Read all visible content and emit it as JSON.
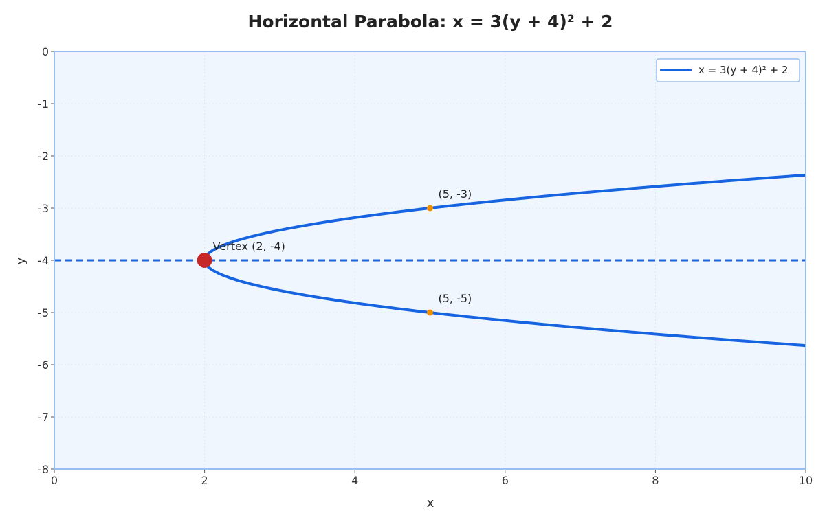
{
  "chart_data": {
    "type": "line",
    "title": "Horizontal Parabola: x = 3(y + 4)² + 2",
    "xlabel": "x",
    "ylabel": "y",
    "xlim": [
      0,
      10
    ],
    "ylim": [
      -8,
      0
    ],
    "xticks": [
      0,
      2,
      4,
      6,
      8,
      10
    ],
    "yticks": [
      0,
      -1,
      -2,
      -3,
      -4,
      -5,
      -6,
      -7,
      -8
    ],
    "grid": true,
    "legend_position": "top-right",
    "equation": {
      "a": 3,
      "h": 2,
      "k": -4
    },
    "series": [
      {
        "name": "x = 3(y + 4)² + 2",
        "color": "#1764e0",
        "style": "solid",
        "y_range": [
          -5.633,
          -2.367
        ]
      }
    ],
    "axis_of_symmetry": {
      "y": -4,
      "color": "#1764e0",
      "style": "dashed"
    },
    "vertex": {
      "x": 2,
      "y": -4,
      "label": "Vertex (2, -4)",
      "color": "#c62828"
    },
    "points": [
      {
        "x": 5,
        "y": -3,
        "label": "(5, -3)",
        "color": "#f28c00"
      },
      {
        "x": 5,
        "y": -5,
        "label": "(5, -5)",
        "color": "#f28c00"
      }
    ],
    "colors": {
      "plot_background": "#eff6fe",
      "frame": "#98bfef",
      "grid": "#dde6f2"
    }
  }
}
